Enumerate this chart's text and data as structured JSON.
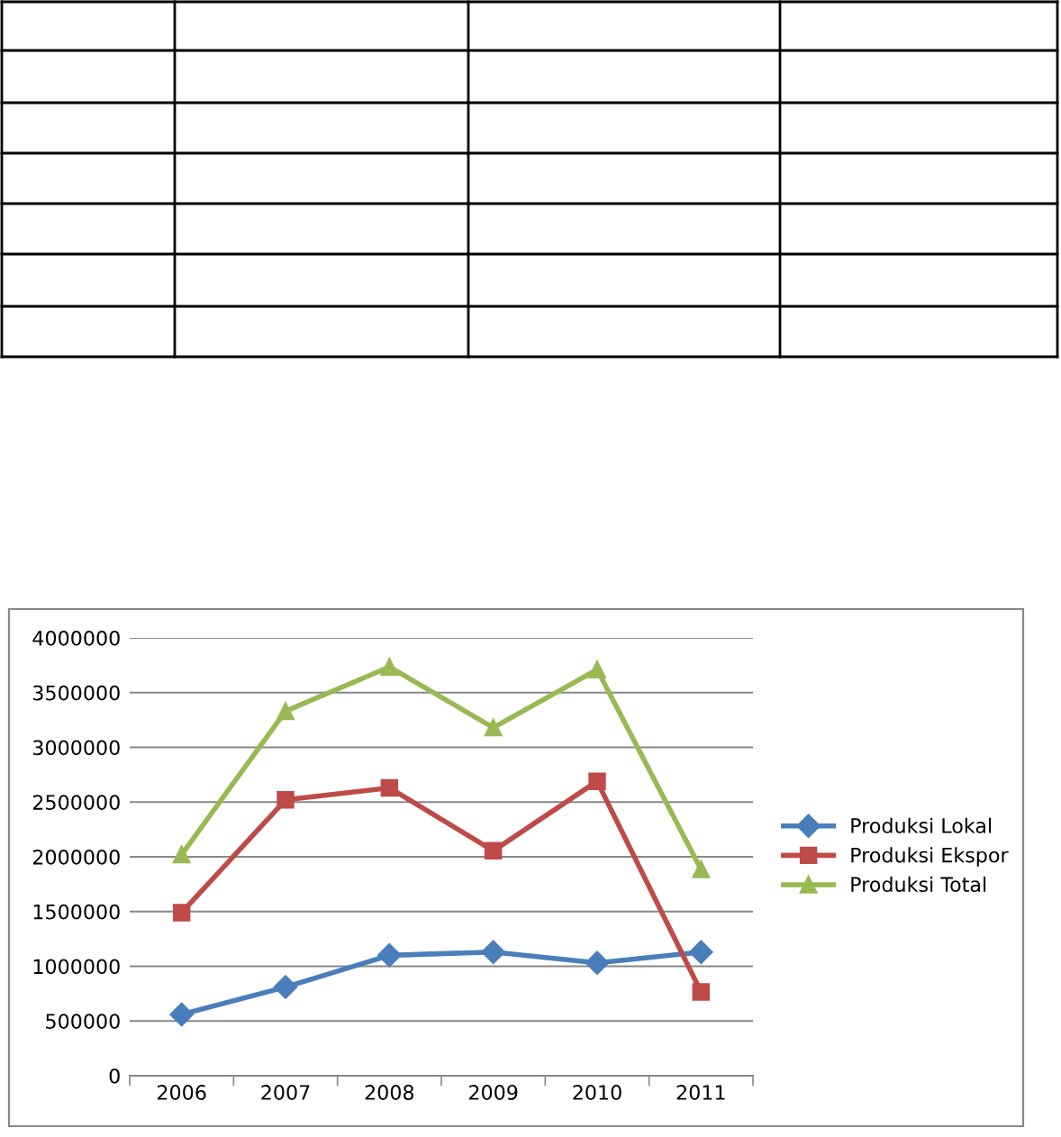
{
  "chart_data": {
    "type": "line",
    "categories": [
      "2006",
      "2007",
      "2008",
      "2009",
      "2010",
      "2011"
    ],
    "series": [
      {
        "name": "Produksi Lokal",
        "color": "#4a7ebb",
        "marker": "diamond",
        "values": [
          560000,
          810000,
          1100000,
          1130000,
          1030000,
          1130000
        ]
      },
      {
        "name": "Produksi Ekspor",
        "color": "#be4b48",
        "marker": "square",
        "values": [
          1490000,
          2520000,
          2630000,
          2055000,
          2690000,
          766000
        ]
      },
      {
        "name": "Produksi Total",
        "color": "#98b954",
        "marker": "triangle",
        "values": [
          2020000,
          3330000,
          3735000,
          3180000,
          3710000,
          1885000
        ]
      }
    ],
    "ylim": [
      0,
      4000000
    ],
    "yticks": [
      0,
      500000,
      1000000,
      1500000,
      2000000,
      2500000,
      3000000,
      3500000,
      4000000
    ],
    "grid": "y",
    "legend": "right",
    "line_style": "solid"
  }
}
